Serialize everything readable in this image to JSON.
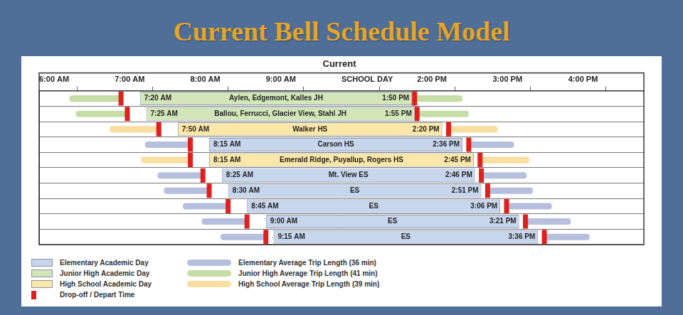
{
  "chart_data": {
    "type": "bar",
    "orientation": "horizontal",
    "title": "Current Bell Schedule Model",
    "subtitle": "Current",
    "xlim": [
      360,
      1020
    ],
    "xticks": [
      {
        "value": 360,
        "label": "6:00 AM"
      },
      {
        "value": 420,
        "label": "7:00 AM"
      },
      {
        "value": 480,
        "label": "8:00 AM"
      },
      {
        "value": 540,
        "label": "9:00 AM"
      },
      {
        "value": 690,
        "label": "SCHOOL DAY"
      },
      {
        "value": 840,
        "label": "2:00 PM"
      },
      {
        "value": 900,
        "label": "3:00 PM"
      },
      {
        "value": 960,
        "label": "4:00 PM"
      }
    ],
    "grid": true,
    "tick_labels": "x",
    "legend": "bottom left",
    "series": [
      {
        "name": "Elementary Academic Day",
        "color": "#c7d6ed",
        "trip_name": "Elementary Average Trip Length (36 min)",
        "trip_minutes": 36,
        "trip_color": "#b6c0de"
      },
      {
        "name": "Junior High Academic Day",
        "color": "#d3e6b9",
        "trip_name": "Junior High Average Trip Length (41 min)",
        "trip_minutes": 41,
        "trip_color": "#c6dea6"
      },
      {
        "name": "High School Academic Day",
        "color": "#fbe8a8",
        "trip_name": "High School Average Trip Length (39 min)",
        "trip_minutes": 39,
        "trip_color": "#f8dea0"
      }
    ],
    "marker_series": {
      "name": "Drop-off / Depart Time",
      "color": "#e0201e"
    },
    "rows": [
      {
        "schools": "Aylen, Edgemont, Kalles JH",
        "level": "Junior High Academic Day",
        "dropoff": 425,
        "start": 440,
        "start_label": "7:20 AM",
        "end": 830,
        "end_label": "1:50 PM",
        "depart": 835
      },
      {
        "schools": "Ballou, Ferrucci, Glacier View, Stahl JH",
        "level": "Junior High Academic Day",
        "dropoff": 430,
        "start": 445,
        "start_label": "7:25 AM",
        "end": 835,
        "end_label": "1:55 PM",
        "depart": 840
      },
      {
        "schools": "Walker HS",
        "level": "High School Academic Day",
        "dropoff": 455,
        "start": 470,
        "start_label": "7:50 AM",
        "end": 860,
        "end_label": "2:20 PM",
        "depart": 865
      },
      {
        "schools": "Carson HS",
        "level": "Elementary Academic Day",
        "dropoff": 480,
        "start": 495,
        "start_label": "8:15 AM",
        "end": 876,
        "end_label": "2:36 PM",
        "depart": 881
      },
      {
        "schools": "Emerald Ridge, Puyallup, Rogers HS",
        "level": "High School Academic Day",
        "dropoff": 480,
        "start": 495,
        "start_label": "8:15 AM",
        "end": 885,
        "end_label": "2:45 PM",
        "depart": 890
      },
      {
        "schools": "Mt. View ES",
        "level": "Elementary Academic Day",
        "dropoff": 490,
        "start": 505,
        "start_label": "8:25 AM",
        "end": 886,
        "end_label": "2:46 PM",
        "depart": 891
      },
      {
        "schools": "ES",
        "level": "Elementary Academic Day",
        "dropoff": 495,
        "start": 510,
        "start_label": "8:30 AM",
        "end": 891,
        "end_label": "2:51 PM",
        "depart": 896
      },
      {
        "schools": "ES",
        "level": "Elementary Academic Day",
        "dropoff": 510,
        "start": 525,
        "start_label": "8:45 AM",
        "end": 906,
        "end_label": "3:06 PM",
        "depart": 911
      },
      {
        "schools": "ES",
        "level": "Elementary Academic Day",
        "dropoff": 525,
        "start": 540,
        "start_label": "9:00 AM",
        "end": 921,
        "end_label": "3:21 PM",
        "depart": 926
      },
      {
        "schools": "ES",
        "level": "Elementary Academic Day",
        "dropoff": 540,
        "start": 555,
        "start_label": "9:15 AM",
        "end": 936,
        "end_label": "3:36 PM",
        "depart": 941
      }
    ]
  }
}
